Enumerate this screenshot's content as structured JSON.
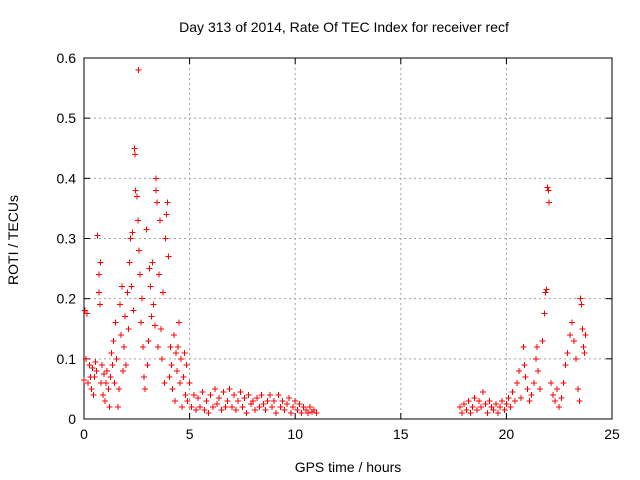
{
  "chart_data": {
    "type": "scatter",
    "title": "Day 313 of 2014, Rate Of TEC Index for receiver recf",
    "xlabel": "GPS time / hours",
    "ylabel": "ROTI / TECUs",
    "xlim": [
      0,
      25
    ],
    "ylim": [
      0,
      0.6
    ],
    "xticks": [
      0,
      5,
      10,
      15,
      20,
      25
    ],
    "xtick_labels": [
      "0",
      "5",
      "10",
      "15",
      "20",
      "25"
    ],
    "yticks": [
      0,
      0.1,
      0.2,
      0.3,
      0.4,
      0.5,
      0.6
    ],
    "ytick_labels": [
      "0",
      "0.1",
      "0.2",
      "0.3",
      "0.4",
      "0.5",
      "0.6"
    ],
    "grid": true,
    "marker": "+",
    "series": [
      {
        "name": "ROTI",
        "color": "#ff0000",
        "points": [
          [
            0.0,
            0.065
          ],
          [
            0.05,
            0.18
          ],
          [
            0.1,
            0.1
          ],
          [
            0.15,
            0.175
          ],
          [
            0.2,
            0.06
          ],
          [
            0.25,
            0.09
          ],
          [
            0.3,
            0.07
          ],
          [
            0.35,
            0.05
          ],
          [
            0.4,
            0.085
          ],
          [
            0.45,
            0.04
          ],
          [
            0.5,
            0.07
          ],
          [
            0.55,
            0.095
          ],
          [
            0.6,
            0.08
          ],
          [
            0.65,
            0.305
          ],
          [
            0.7,
            0.24
          ],
          [
            0.72,
            0.21
          ],
          [
            0.75,
            0.19
          ],
          [
            0.78,
            0.26
          ],
          [
            0.8,
            0.06
          ],
          [
            0.85,
            0.09
          ],
          [
            0.9,
            0.04
          ],
          [
            0.95,
            0.075
          ],
          [
            1.0,
            0.03
          ],
          [
            1.05,
            0.06
          ],
          [
            1.1,
            0.08
          ],
          [
            1.15,
            0.05
          ],
          [
            1.2,
            0.02
          ],
          [
            1.25,
            0.07
          ],
          [
            1.3,
            0.11
          ],
          [
            1.35,
            0.09
          ],
          [
            1.4,
            0.13
          ],
          [
            1.45,
            0.06
          ],
          [
            1.5,
            0.16
          ],
          [
            1.55,
            0.1
          ],
          [
            1.6,
            0.02
          ],
          [
            1.65,
            0.05
          ],
          [
            1.7,
            0.19
          ],
          [
            1.75,
            0.14
          ],
          [
            1.8,
            0.22
          ],
          [
            1.85,
            0.08
          ],
          [
            1.9,
            0.12
          ],
          [
            1.95,
            0.17
          ],
          [
            2.0,
            0.09
          ],
          [
            2.05,
            0.21
          ],
          [
            2.1,
            0.15
          ],
          [
            2.15,
            0.26
          ],
          [
            2.2,
            0.3
          ],
          [
            2.25,
            0.22
          ],
          [
            2.3,
            0.31
          ],
          [
            2.35,
            0.18
          ],
          [
            2.4,
            0.45
          ],
          [
            2.42,
            0.44
          ],
          [
            2.45,
            0.38
          ],
          [
            2.5,
            0.37
          ],
          [
            2.55,
            0.33
          ],
          [
            2.58,
            0.58
          ],
          [
            2.6,
            0.28
          ],
          [
            2.65,
            0.24
          ],
          [
            2.7,
            0.16
          ],
          [
            2.75,
            0.2
          ],
          [
            2.8,
            0.12
          ],
          [
            2.85,
            0.07
          ],
          [
            2.9,
            0.05
          ],
          [
            2.95,
            0.315
          ],
          [
            3.0,
            0.09
          ],
          [
            3.05,
            0.13
          ],
          [
            3.1,
            0.25
          ],
          [
            3.15,
            0.22
          ],
          [
            3.2,
            0.17
          ],
          [
            3.25,
            0.26
          ],
          [
            3.3,
            0.19
          ],
          [
            3.35,
            0.155
          ],
          [
            3.4,
            0.38
          ],
          [
            3.42,
            0.4
          ],
          [
            3.45,
            0.36
          ],
          [
            3.5,
            0.12
          ],
          [
            3.55,
            0.24
          ],
          [
            3.6,
            0.33
          ],
          [
            3.65,
            0.15
          ],
          [
            3.7,
            0.1
          ],
          [
            3.75,
            0.21
          ],
          [
            3.8,
            0.06
          ],
          [
            3.85,
            0.3
          ],
          [
            3.9,
            0.34
          ],
          [
            3.95,
            0.36
          ],
          [
            4.0,
            0.27
          ],
          [
            4.05,
            0.07
          ],
          [
            4.1,
            0.12
          ],
          [
            4.15,
            0.09
          ],
          [
            4.2,
            0.05
          ],
          [
            4.25,
            0.14
          ],
          [
            4.3,
            0.03
          ],
          [
            4.35,
            0.11
          ],
          [
            4.4,
            0.08
          ],
          [
            4.45,
            0.12
          ],
          [
            4.5,
            0.16
          ],
          [
            4.55,
            0.06
          ],
          [
            4.6,
            0.1
          ],
          [
            4.65,
            0.02
          ],
          [
            4.7,
            0.07
          ],
          [
            4.75,
            0.11
          ],
          [
            4.8,
            0.04
          ],
          [
            4.85,
            0.09
          ],
          [
            4.9,
            0.03
          ],
          [
            5.0,
            0.06
          ],
          [
            5.1,
            0.02
          ],
          [
            5.2,
            0.04
          ],
          [
            5.3,
            0.015
          ],
          [
            5.4,
            0.035
          ],
          [
            5.5,
            0.02
          ],
          [
            5.6,
            0.045
          ],
          [
            5.7,
            0.015
          ],
          [
            5.8,
            0.03
          ],
          [
            5.9,
            0.01
          ],
          [
            6.0,
            0.04
          ],
          [
            6.1,
            0.02
          ],
          [
            6.2,
            0.05
          ],
          [
            6.3,
            0.025
          ],
          [
            6.4,
            0.035
          ],
          [
            6.5,
            0.015
          ],
          [
            6.6,
            0.045
          ],
          [
            6.7,
            0.02
          ],
          [
            6.8,
            0.03
          ],
          [
            6.9,
            0.05
          ],
          [
            7.0,
            0.02
          ],
          [
            7.1,
            0.04
          ],
          [
            7.2,
            0.015
          ],
          [
            7.3,
            0.03
          ],
          [
            7.4,
            0.045
          ],
          [
            7.5,
            0.02
          ],
          [
            7.6,
            0.035
          ],
          [
            7.7,
            0.01
          ],
          [
            7.8,
            0.04
          ],
          [
            7.9,
            0.025
          ],
          [
            8.0,
            0.03
          ],
          [
            8.1,
            0.015
          ],
          [
            8.2,
            0.035
          ],
          [
            8.3,
            0.02
          ],
          [
            8.4,
            0.04
          ],
          [
            8.5,
            0.025
          ],
          [
            8.6,
            0.015
          ],
          [
            8.7,
            0.03
          ],
          [
            8.8,
            0.04
          ],
          [
            8.9,
            0.02
          ],
          [
            9.0,
            0.03
          ],
          [
            9.1,
            0.01
          ],
          [
            9.2,
            0.04
          ],
          [
            9.3,
            0.02
          ],
          [
            9.4,
            0.03
          ],
          [
            9.5,
            0.015
          ],
          [
            9.6,
            0.025
          ],
          [
            9.7,
            0.035
          ],
          [
            9.8,
            0.01
          ],
          [
            9.9,
            0.02
          ],
          [
            10.0,
            0.03
          ],
          [
            10.1,
            0.015
          ],
          [
            10.2,
            0.025
          ],
          [
            10.3,
            0.01
          ],
          [
            10.4,
            0.02
          ],
          [
            10.5,
            0.015
          ],
          [
            10.6,
            0.01
          ],
          [
            10.7,
            0.02
          ],
          [
            10.8,
            0.012
          ],
          [
            10.9,
            0.015
          ],
          [
            11.0,
            0.01
          ],
          [
            17.8,
            0.02
          ],
          [
            17.9,
            0.01
          ],
          [
            18.0,
            0.025
          ],
          [
            18.1,
            0.015
          ],
          [
            18.2,
            0.03
          ],
          [
            18.3,
            0.01
          ],
          [
            18.4,
            0.02
          ],
          [
            18.5,
            0.035
          ],
          [
            18.6,
            0.015
          ],
          [
            18.7,
            0.03
          ],
          [
            18.8,
            0.02
          ],
          [
            18.9,
            0.045
          ],
          [
            19.0,
            0.025
          ],
          [
            19.1,
            0.01
          ],
          [
            19.2,
            0.03
          ],
          [
            19.3,
            0.02
          ],
          [
            19.4,
            0.015
          ],
          [
            19.5,
            0.025
          ],
          [
            19.6,
            0.01
          ],
          [
            19.7,
            0.02
          ],
          [
            19.8,
            0.03
          ],
          [
            19.9,
            0.015
          ],
          [
            20.0,
            0.025
          ],
          [
            20.1,
            0.035
          ],
          [
            20.2,
            0.02
          ],
          [
            20.3,
            0.045
          ],
          [
            20.4,
            0.03
          ],
          [
            20.5,
            0.06
          ],
          [
            20.6,
            0.08
          ],
          [
            20.7,
            0.035
          ],
          [
            20.8,
            0.12
          ],
          [
            20.85,
            0.09
          ],
          [
            20.9,
            0.07
          ],
          [
            21.0,
            0.05
          ],
          [
            21.1,
            0.03
          ],
          [
            21.2,
            0.04
          ],
          [
            21.3,
            0.06
          ],
          [
            21.4,
            0.1
          ],
          [
            21.45,
            0.12
          ],
          [
            21.5,
            0.08
          ],
          [
            21.6,
            0.05
          ],
          [
            21.7,
            0.13
          ],
          [
            21.8,
            0.175
          ],
          [
            21.85,
            0.21
          ],
          [
            21.9,
            0.215
          ],
          [
            21.95,
            0.385
          ],
          [
            22.0,
            0.38
          ],
          [
            22.02,
            0.36
          ],
          [
            22.1,
            0.06
          ],
          [
            22.2,
            0.04
          ],
          [
            22.3,
            0.03
          ],
          [
            22.4,
            0.05
          ],
          [
            22.5,
            0.02
          ],
          [
            22.6,
            0.035
          ],
          [
            22.7,
            0.06
          ],
          [
            22.8,
            0.09
          ],
          [
            22.9,
            0.11
          ],
          [
            23.0,
            0.14
          ],
          [
            23.1,
            0.16
          ],
          [
            23.2,
            0.13
          ],
          [
            23.3,
            0.1
          ],
          [
            23.4,
            0.05
          ],
          [
            23.45,
            0.03
          ],
          [
            23.5,
            0.2
          ],
          [
            23.55,
            0.19
          ],
          [
            23.6,
            0.15
          ],
          [
            23.65,
            0.12
          ],
          [
            23.7,
            0.11
          ],
          [
            23.75,
            0.14
          ]
        ]
      }
    ]
  }
}
